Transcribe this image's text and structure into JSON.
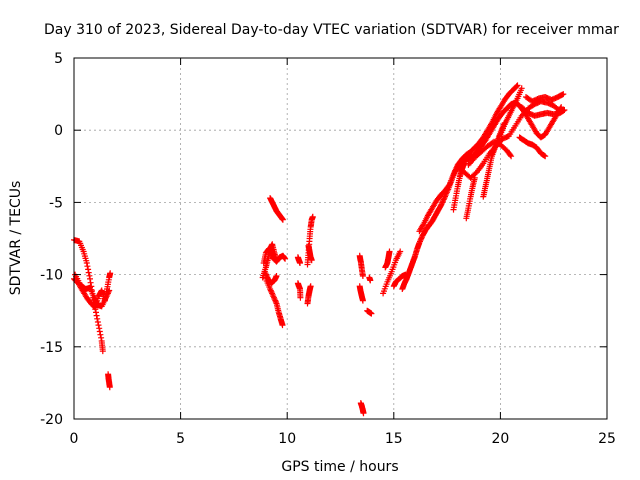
{
  "chart_data": {
    "type": "scatter",
    "title": "Day 310 of 2023, Sidereal Day-to-day VTEC variation (SDTVAR) for receiver mmar",
    "xlabel": "GPS time / hours",
    "ylabel": "SDTVAR / TECUs",
    "xlim": [
      0,
      25
    ],
    "ylim": [
      -20,
      5
    ],
    "xticks": [
      0,
      5,
      10,
      15,
      20,
      25
    ],
    "yticks": [
      -20,
      -15,
      -10,
      -5,
      0,
      5
    ],
    "xtick_labels": [
      "0",
      "5",
      "10",
      "15",
      "20",
      "25"
    ],
    "ytick_labels": [
      "-20",
      "-15",
      "-10",
      "-5",
      "0",
      "5"
    ],
    "grid": true,
    "marker": "+",
    "series": [
      {
        "name": "mmar",
        "color": "#ff0000",
        "traces": [
          [
            [
              0.0,
              -7.6
            ],
            [
              0.25,
              -7.7
            ],
            [
              0.45,
              -8.4
            ],
            [
              0.6,
              -9.2
            ],
            [
              0.75,
              -10.3
            ],
            [
              0.9,
              -11.6
            ],
            [
              1.0,
              -12.4
            ],
            [
              1.15,
              -13.5
            ],
            [
              1.3,
              -14.6
            ],
            [
              1.35,
              -15.3
            ]
          ],
          [
            [
              0.0,
              -10.3
            ],
            [
              0.2,
              -10.6
            ],
            [
              0.4,
              -11.1
            ],
            [
              0.6,
              -11.6
            ],
            [
              0.8,
              -12.0
            ],
            [
              1.0,
              -12.3
            ],
            [
              1.15,
              -11.5
            ],
            [
              1.3,
              -11.1
            ],
            [
              1.45,
              -11.8
            ],
            [
              1.55,
              -11.0
            ],
            [
              1.65,
              -10.2
            ],
            [
              1.7,
              -9.9
            ]
          ],
          [
            [
              0.05,
              -10.0
            ],
            [
              0.3,
              -10.7
            ],
            [
              0.55,
              -11.0
            ],
            [
              0.75,
              -10.9
            ],
            [
              0.95,
              -11.6
            ],
            [
              1.1,
              -12.1
            ],
            [
              1.3,
              -12.2
            ],
            [
              1.5,
              -11.6
            ],
            [
              1.65,
              -11.1
            ]
          ],
          [
            [
              1.6,
              -16.9
            ],
            [
              1.62,
              -17.2
            ],
            [
              1.65,
              -17.5
            ],
            [
              1.68,
              -17.8
            ]
          ],
          [
            [
              8.9,
              -9.2
            ],
            [
              9.0,
              -8.5
            ],
            [
              9.15,
              -8.2
            ],
            [
              9.3,
              -8.8
            ],
            [
              9.5,
              -9.1
            ],
            [
              9.65,
              -8.8
            ],
            [
              9.8,
              -8.7
            ],
            [
              9.9,
              -8.9
            ]
          ],
          [
            [
              8.85,
              -10.2
            ],
            [
              9.0,
              -9.5
            ],
            [
              9.1,
              -8.9
            ],
            [
              9.2,
              -8.2
            ],
            [
              9.3,
              -7.9
            ],
            [
              9.4,
              -8.5
            ],
            [
              9.5,
              -9.0
            ]
          ],
          [
            [
              9.0,
              -10.3
            ],
            [
              9.2,
              -11.0
            ],
            [
              9.35,
              -11.5
            ],
            [
              9.5,
              -12.0
            ],
            [
              9.6,
              -12.6
            ],
            [
              9.7,
              -13.1
            ],
            [
              9.78,
              -13.5
            ]
          ],
          [
            [
              8.95,
              -9.8
            ],
            [
              9.1,
              -10.3
            ],
            [
              9.25,
              -10.6
            ],
            [
              9.4,
              -10.4
            ],
            [
              9.5,
              -10.1
            ]
          ],
          [
            [
              9.2,
              -4.7
            ],
            [
              9.3,
              -5.0
            ],
            [
              9.4,
              -5.3
            ],
            [
              9.5,
              -5.6
            ],
            [
              9.6,
              -5.8
            ],
            [
              9.7,
              -6.0
            ],
            [
              9.8,
              -6.2
            ]
          ],
          [
            [
              10.5,
              -8.8
            ],
            [
              10.55,
              -9.0
            ],
            [
              10.6,
              -9.2
            ]
          ],
          [
            [
              10.5,
              -10.6
            ],
            [
              10.55,
              -10.8
            ],
            [
              10.6,
              -11.0
            ],
            [
              10.62,
              -11.6
            ]
          ],
          [
            [
              10.95,
              -9.3
            ],
            [
              11.0,
              -8.5
            ],
            [
              11.05,
              -7.5
            ],
            [
              11.1,
              -6.7
            ],
            [
              11.15,
              -6.2
            ],
            [
              11.2,
              -6.0
            ]
          ],
          [
            [
              11.0,
              -8.0
            ],
            [
              11.05,
              -8.4
            ],
            [
              11.1,
              -8.8
            ],
            [
              11.15,
              -9.0
            ]
          ],
          [
            [
              10.95,
              -12.0
            ],
            [
              11.0,
              -11.5
            ],
            [
              11.05,
              -11.1
            ],
            [
              11.1,
              -10.8
            ]
          ],
          [
            [
              13.4,
              -8.7
            ],
            [
              13.45,
              -9.1
            ],
            [
              13.5,
              -9.6
            ],
            [
              13.55,
              -10.1
            ]
          ],
          [
            [
              13.4,
              -10.8
            ],
            [
              13.45,
              -11.2
            ],
            [
              13.5,
              -11.5
            ],
            [
              13.55,
              -11.8
            ]
          ],
          [
            [
              13.85,
              -10.2
            ],
            [
              13.9,
              -10.4
            ]
          ],
          [
            [
              13.75,
              -12.5
            ],
            [
              13.85,
              -12.6
            ],
            [
              13.95,
              -12.7
            ]
          ],
          [
            [
              13.45,
              -18.9
            ],
            [
              13.5,
              -19.1
            ],
            [
              13.55,
              -19.4
            ],
            [
              13.58,
              -19.6
            ]
          ],
          [
            [
              14.5,
              -11.3
            ],
            [
              14.7,
              -10.5
            ],
            [
              14.9,
              -9.8
            ],
            [
              15.1,
              -9.0
            ],
            [
              15.3,
              -8.4
            ]
          ],
          [
            [
              14.6,
              -9.5
            ],
            [
              14.7,
              -9.2
            ],
            [
              14.75,
              -8.8
            ],
            [
              14.8,
              -8.4
            ]
          ],
          [
            [
              15.0,
              -10.8
            ],
            [
              15.1,
              -10.5
            ],
            [
              15.25,
              -10.3
            ],
            [
              15.4,
              -10.1
            ],
            [
              15.55,
              -10.0
            ]
          ],
          [
            [
              15.4,
              -11.0
            ],
            [
              15.5,
              -10.6
            ],
            [
              15.6,
              -10.3
            ],
            [
              15.7,
              -9.9
            ],
            [
              15.8,
              -9.5
            ],
            [
              15.9,
              -9.1
            ],
            [
              16.0,
              -8.7
            ],
            [
              16.1,
              -8.2
            ],
            [
              16.2,
              -7.8
            ],
            [
              16.35,
              -7.3
            ],
            [
              16.5,
              -6.9
            ],
            [
              16.65,
              -6.6
            ],
            [
              16.8,
              -6.3
            ],
            [
              16.95,
              -5.9
            ],
            [
              17.1,
              -5.5
            ],
            [
              17.25,
              -5.1
            ],
            [
              17.4,
              -4.6
            ],
            [
              17.55,
              -4.1
            ],
            [
              17.7,
              -3.5
            ],
            [
              17.85,
              -2.9
            ],
            [
              18.0,
              -2.4
            ],
            [
              18.2,
              -2.0
            ],
            [
              18.4,
              -1.7
            ],
            [
              18.6,
              -1.5
            ],
            [
              18.8,
              -1.2
            ],
            [
              19.0,
              -0.9
            ],
            [
              19.2,
              -0.5
            ],
            [
              19.4,
              0.0
            ],
            [
              19.6,
              0.5
            ],
            [
              19.8,
              1.1
            ],
            [
              20.0,
              1.6
            ],
            [
              20.2,
              2.1
            ],
            [
              20.4,
              2.5
            ],
            [
              20.6,
              2.8
            ],
            [
              20.8,
              3.1
            ]
          ],
          [
            [
              16.2,
              -7.0
            ],
            [
              16.4,
              -6.5
            ],
            [
              16.6,
              -5.9
            ],
            [
              16.8,
              -5.4
            ],
            [
              17.0,
              -4.9
            ],
            [
              17.2,
              -4.5
            ],
            [
              17.4,
              -4.2
            ],
            [
              17.6,
              -3.8
            ],
            [
              17.8,
              -3.1
            ],
            [
              18.0,
              -2.5
            ],
            [
              18.2,
              -2.2
            ],
            [
              18.45,
              -2.0
            ],
            [
              18.7,
              -1.8
            ],
            [
              18.9,
              -1.5
            ],
            [
              19.1,
              -1.1
            ],
            [
              19.3,
              -0.7
            ],
            [
              19.5,
              -0.2
            ],
            [
              19.7,
              0.3
            ],
            [
              19.9,
              0.8
            ],
            [
              20.1,
              1.2
            ],
            [
              20.3,
              1.5
            ],
            [
              20.5,
              1.8
            ],
            [
              20.7,
              1.9
            ],
            [
              20.9,
              1.7
            ],
            [
              21.1,
              1.3
            ],
            [
              21.3,
              0.8
            ],
            [
              21.5,
              0.3
            ],
            [
              21.7,
              -0.2
            ],
            [
              21.9,
              -0.5
            ],
            [
              22.1,
              -0.3
            ],
            [
              22.3,
              0.2
            ],
            [
              22.5,
              0.7
            ],
            [
              22.7,
              1.2
            ],
            [
              22.85,
              1.6
            ]
          ],
          [
            [
              17.8,
              -5.5
            ],
            [
              17.9,
              -4.7
            ],
            [
              18.0,
              -3.9
            ],
            [
              18.1,
              -3.2
            ],
            [
              18.2,
              -2.7
            ],
            [
              18.3,
              -2.3
            ]
          ],
          [
            [
              18.0,
              -2.6
            ],
            [
              18.3,
              -2.9
            ],
            [
              18.6,
              -3.3
            ],
            [
              18.9,
              -2.9
            ],
            [
              19.2,
              -2.3
            ],
            [
              19.5,
              -1.6
            ],
            [
              19.8,
              -1.1
            ],
            [
              20.1,
              -0.6
            ],
            [
              20.4,
              -0.4
            ],
            [
              20.7,
              0.3
            ],
            [
              21.0,
              1.0
            ],
            [
              21.3,
              1.5
            ],
            [
              21.6,
              1.8
            ],
            [
              21.9,
              2.0
            ],
            [
              22.2,
              1.9
            ],
            [
              22.5,
              1.7
            ],
            [
              22.8,
              1.3
            ]
          ],
          [
            [
              18.4,
              -6.1
            ],
            [
              18.5,
              -5.4
            ],
            [
              18.6,
              -4.6
            ],
            [
              18.7,
              -3.9
            ],
            [
              18.8,
              -3.3
            ]
          ],
          [
            [
              18.5,
              -2.4
            ],
            [
              18.8,
              -1.9
            ],
            [
              19.1,
              -1.5
            ],
            [
              19.4,
              -1.1
            ],
            [
              19.7,
              -0.8
            ],
            [
              20.0,
              -1.0
            ],
            [
              20.3,
              -1.4
            ],
            [
              20.5,
              -1.8
            ]
          ],
          [
            [
              19.2,
              -4.6
            ],
            [
              19.3,
              -3.9
            ],
            [
              19.4,
              -3.2
            ],
            [
              19.5,
              -2.5
            ],
            [
              19.6,
              -1.8
            ],
            [
              19.75,
              -1.2
            ],
            [
              19.9,
              -0.6
            ],
            [
              20.05,
              0.0
            ],
            [
              20.2,
              0.5
            ]
          ],
          [
            [
              19.6,
              -1.6
            ],
            [
              19.8,
              -1.0
            ],
            [
              20.0,
              -0.3
            ],
            [
              20.2,
              0.4
            ],
            [
              20.4,
              1.0
            ],
            [
              20.6,
              1.6
            ],
            [
              20.8,
              2.2
            ],
            [
              21.0,
              2.9
            ]
          ],
          [
            [
              20.9,
              -0.5
            ],
            [
              21.1,
              -0.7
            ],
            [
              21.3,
              -0.9
            ],
            [
              21.5,
              -1.0
            ],
            [
              21.7,
              -1.2
            ],
            [
              21.9,
              -1.6
            ],
            [
              22.1,
              -1.8
            ]
          ],
          [
            [
              21.2,
              2.3
            ],
            [
              21.5,
              2.0
            ],
            [
              21.8,
              2.2
            ],
            [
              22.1,
              2.3
            ],
            [
              22.4,
              2.1
            ],
            [
              22.7,
              2.3
            ],
            [
              22.95,
              2.5
            ]
          ],
          [
            [
              21.0,
              1.6
            ],
            [
              21.3,
              1.2
            ],
            [
              21.6,
              1.0
            ],
            [
              21.9,
              1.1
            ],
            [
              22.2,
              1.2
            ],
            [
              22.5,
              1.1
            ],
            [
              22.8,
              1.2
            ],
            [
              23.0,
              1.4
            ]
          ]
        ]
      }
    ]
  }
}
